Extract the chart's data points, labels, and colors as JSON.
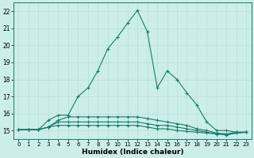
{
  "title": "",
  "xlabel": "Humidex (Indice chaleur)",
  "xlim": [
    -0.5,
    23.5
  ],
  "ylim": [
    14.5,
    22.5
  ],
  "xticks": [
    0,
    1,
    2,
    3,
    4,
    5,
    6,
    7,
    8,
    9,
    10,
    11,
    12,
    13,
    14,
    15,
    16,
    17,
    18,
    19,
    20,
    21,
    22,
    23
  ],
  "yticks": [
    15,
    16,
    17,
    18,
    19,
    20,
    21,
    22
  ],
  "background_color": "#cceee8",
  "grid_color": "#b8ddd8",
  "line_color": "#1a7a70",
  "series": [
    [
      15.05,
      15.05,
      15.05,
      15.6,
      15.9,
      15.9,
      17.0,
      17.5,
      18.5,
      19.8,
      20.5,
      21.3,
      22.05,
      20.8,
      17.5,
      18.5,
      18.0,
      17.2,
      16.5,
      15.5,
      15.0,
      15.0,
      14.9,
      14.9
    ],
    [
      15.05,
      15.05,
      15.05,
      15.2,
      15.6,
      15.8,
      15.8,
      15.8,
      15.8,
      15.8,
      15.8,
      15.8,
      15.8,
      15.7,
      15.6,
      15.5,
      15.4,
      15.3,
      15.1,
      15.0,
      14.85,
      14.8,
      14.9,
      14.9
    ],
    [
      15.05,
      15.05,
      15.05,
      15.2,
      15.5,
      15.5,
      15.5,
      15.5,
      15.5,
      15.5,
      15.5,
      15.5,
      15.5,
      15.4,
      15.3,
      15.3,
      15.2,
      15.1,
      15.0,
      14.9,
      14.8,
      14.75,
      14.85,
      14.9
    ],
    [
      15.05,
      15.05,
      15.05,
      15.2,
      15.3,
      15.3,
      15.3,
      15.3,
      15.3,
      15.3,
      15.3,
      15.3,
      15.3,
      15.2,
      15.1,
      15.1,
      15.0,
      14.95,
      14.9,
      14.85,
      14.8,
      14.75,
      14.85,
      14.9
    ]
  ]
}
